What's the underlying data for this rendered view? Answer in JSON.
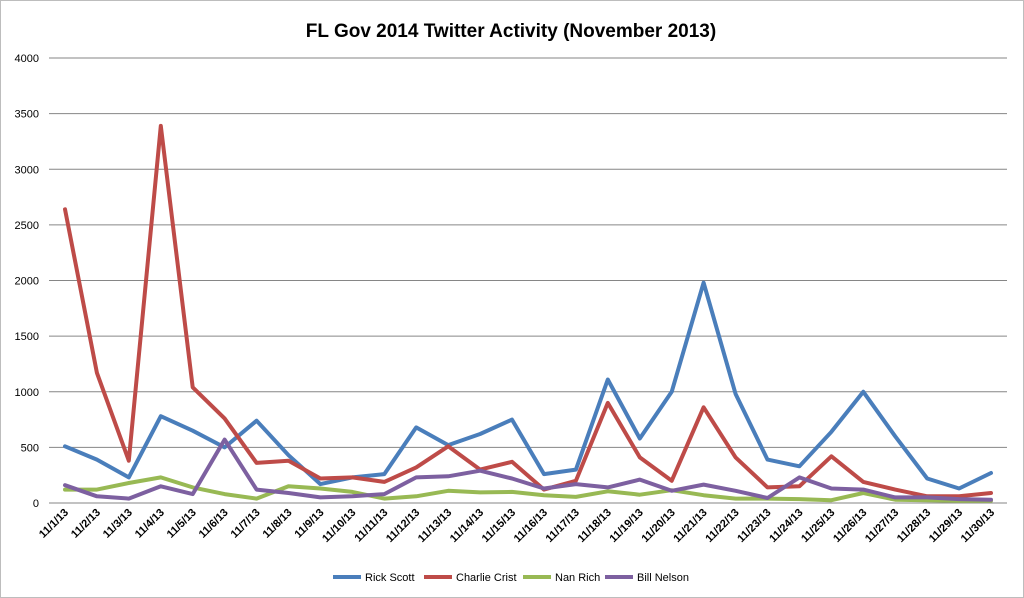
{
  "chart_data": {
    "type": "line",
    "title": "FL Gov 2014 Twitter Activity (November 2013)",
    "xlabel": "",
    "ylabel": "",
    "ylim": [
      0,
      4000
    ],
    "yticks": [
      0,
      500,
      1000,
      1500,
      2000,
      2500,
      3000,
      3500,
      4000
    ],
    "grid": true,
    "legend_position": "bottom",
    "categories": [
      "11/1/13",
      "11/2/13",
      "11/3/13",
      "11/4/13",
      "11/5/13",
      "11/6/13",
      "11/7/13",
      "11/8/13",
      "11/9/13",
      "11/10/13",
      "11/11/13",
      "11/12/13",
      "11/13/13",
      "11/14/13",
      "11/15/13",
      "11/16/13",
      "11/17/13",
      "11/18/13",
      "11/19/13",
      "11/20/13",
      "11/21/13",
      "11/22/13",
      "11/23/13",
      "11/24/13",
      "11/25/13",
      "11/26/13",
      "11/27/13",
      "11/28/13",
      "11/29/13",
      "11/30/13"
    ],
    "series": [
      {
        "name": "Rick Scott",
        "color": "#4a7ebb",
        "values": [
          510,
          390,
          230,
          780,
          650,
          500,
          740,
          430,
          170,
          230,
          260,
          680,
          520,
          620,
          750,
          260,
          300,
          1110,
          580,
          1000,
          1980,
          980,
          390,
          330,
          640,
          1000,
          600,
          220,
          130,
          270
        ]
      },
      {
        "name": "Charlie Crist",
        "color": "#be4b48",
        "values": [
          2640,
          1170,
          380,
          3390,
          1040,
          760,
          360,
          380,
          220,
          230,
          190,
          320,
          510,
          300,
          370,
          120,
          200,
          900,
          410,
          200,
          860,
          410,
          140,
          150,
          420,
          190,
          120,
          60,
          60,
          90
        ]
      },
      {
        "name": "Nan Rich",
        "color": "#98b954",
        "values": [
          120,
          120,
          180,
          230,
          140,
          80,
          40,
          150,
          130,
          100,
          40,
          60,
          110,
          95,
          100,
          70,
          55,
          105,
          75,
          115,
          70,
          40,
          40,
          35,
          25,
          90,
          30,
          25,
          20,
          20
        ]
      },
      {
        "name": "Bill Nelson",
        "color": "#7d60a0",
        "values": [
          160,
          60,
          40,
          150,
          80,
          570,
          120,
          90,
          50,
          60,
          80,
          230,
          240,
          290,
          220,
          130,
          170,
          140,
          210,
          110,
          165,
          110,
          45,
          230,
          130,
          120,
          50,
          50,
          35,
          30
        ]
      }
    ]
  }
}
